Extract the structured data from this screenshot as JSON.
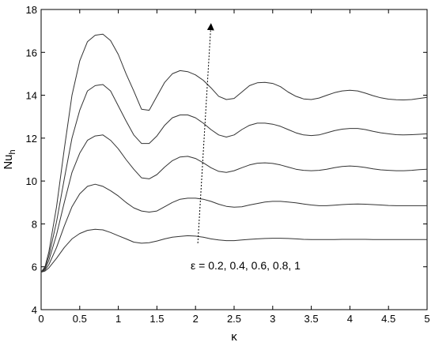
{
  "chart_data": {
    "type": "line",
    "xlabel": "κ",
    "ylabel_main": "Nu",
    "ylabel_sub": "h",
    "xlim": [
      0,
      5
    ],
    "ylim": [
      4,
      18
    ],
    "xticks": [
      0,
      0.5,
      1,
      1.5,
      2,
      2.5,
      3,
      3.5,
      4,
      4.5,
      5
    ],
    "xtick_labels": [
      "0",
      "0.5",
      "1",
      "1.5",
      "2",
      "2.5",
      "3",
      "3.5",
      "4",
      "4.5",
      "5"
    ],
    "yticks": [
      4,
      6,
      8,
      10,
      12,
      14,
      16,
      18
    ],
    "ytick_labels": [
      "4",
      "6",
      "8",
      "10",
      "12",
      "14",
      "16",
      "18"
    ],
    "grid": false,
    "annotation": "ε = 0.2, 0.4, 0.6, 0.8, 1",
    "annotation_arrow": {
      "from": [
        2.03,
        7.1
      ],
      "to": [
        2.2,
        17.3
      ]
    },
    "line_color": "#333333",
    "series": [
      {
        "x": [
          0,
          0.05,
          0.1,
          0.2,
          0.3,
          0.4,
          0.5,
          0.6,
          0.7,
          0.8,
          0.9,
          1.0,
          1.1,
          1.2,
          1.3,
          1.4,
          1.5,
          1.6,
          1.7,
          1.8,
          1.9,
          2.0,
          2.1,
          2.2,
          2.3,
          2.4,
          2.5,
          2.6,
          2.7,
          2.8,
          2.9,
          3.0,
          3.1,
          3.2,
          3.3,
          3.4,
          3.5,
          3.6,
          3.7,
          3.8,
          3.9,
          4.0,
          4.1,
          4.2,
          4.3,
          4.4,
          4.5,
          4.6,
          4.7,
          4.8,
          4.9,
          5.0
        ],
        "values": [
          5.75,
          5.8,
          5.95,
          6.4,
          6.9,
          7.3,
          7.55,
          7.7,
          7.75,
          7.72,
          7.6,
          7.45,
          7.3,
          7.15,
          7.1,
          7.12,
          7.2,
          7.3,
          7.38,
          7.42,
          7.45,
          7.43,
          7.38,
          7.3,
          7.25,
          7.22,
          7.22,
          7.25,
          7.28,
          7.3,
          7.32,
          7.33,
          7.33,
          7.32,
          7.3,
          7.28,
          7.27,
          7.27,
          7.27,
          7.27,
          7.28,
          7.28,
          7.28,
          7.28,
          7.27,
          7.27,
          7.27,
          7.27,
          7.27,
          7.27,
          7.27,
          7.27
        ]
      },
      {
        "x": [
          0,
          0.05,
          0.1,
          0.2,
          0.3,
          0.4,
          0.5,
          0.6,
          0.7,
          0.8,
          0.9,
          1.0,
          1.1,
          1.2,
          1.3,
          1.4,
          1.5,
          1.6,
          1.7,
          1.8,
          1.9,
          2.0,
          2.1,
          2.2,
          2.3,
          2.4,
          2.5,
          2.6,
          2.7,
          2.8,
          2.9,
          3.0,
          3.1,
          3.2,
          3.3,
          3.4,
          3.5,
          3.6,
          3.7,
          3.8,
          3.9,
          4.0,
          4.1,
          4.2,
          4.3,
          4.4,
          4.5,
          4.6,
          4.7,
          4.8,
          4.9,
          5.0
        ],
        "values": [
          5.75,
          5.85,
          6.1,
          6.9,
          7.9,
          8.8,
          9.4,
          9.75,
          9.85,
          9.75,
          9.55,
          9.3,
          9.0,
          8.75,
          8.6,
          8.55,
          8.6,
          8.8,
          9.0,
          9.15,
          9.2,
          9.2,
          9.15,
          9.05,
          8.92,
          8.82,
          8.78,
          8.8,
          8.88,
          8.95,
          9.02,
          9.05,
          9.05,
          9.02,
          8.98,
          8.93,
          8.88,
          8.85,
          8.85,
          8.87,
          8.9,
          8.92,
          8.93,
          8.92,
          8.9,
          8.88,
          8.86,
          8.85,
          8.85,
          8.85,
          8.85,
          8.85
        ]
      },
      {
        "x": [
          0,
          0.05,
          0.1,
          0.2,
          0.3,
          0.4,
          0.5,
          0.6,
          0.7,
          0.8,
          0.9,
          1.0,
          1.1,
          1.2,
          1.3,
          1.4,
          1.5,
          1.6,
          1.7,
          1.8,
          1.9,
          2.0,
          2.1,
          2.2,
          2.3,
          2.4,
          2.5,
          2.6,
          2.7,
          2.8,
          2.9,
          3.0,
          3.1,
          3.2,
          3.3,
          3.4,
          3.5,
          3.6,
          3.7,
          3.8,
          3.9,
          4.0,
          4.1,
          4.2,
          4.3,
          4.4,
          4.5,
          4.6,
          4.7,
          4.8,
          4.9,
          5.0
        ],
        "values": [
          5.75,
          5.9,
          6.3,
          7.5,
          9.0,
          10.4,
          11.3,
          11.9,
          12.1,
          12.15,
          11.9,
          11.5,
          11.0,
          10.55,
          10.15,
          10.1,
          10.3,
          10.65,
          10.95,
          11.12,
          11.15,
          11.05,
          10.85,
          10.62,
          10.45,
          10.4,
          10.48,
          10.62,
          10.75,
          10.83,
          10.85,
          10.82,
          10.75,
          10.65,
          10.55,
          10.5,
          10.48,
          10.5,
          10.55,
          10.62,
          10.68,
          10.7,
          10.68,
          10.63,
          10.57,
          10.52,
          10.5,
          10.48,
          10.48,
          10.5,
          10.53,
          10.55
        ]
      },
      {
        "x": [
          0,
          0.05,
          0.1,
          0.2,
          0.3,
          0.4,
          0.5,
          0.6,
          0.7,
          0.8,
          0.9,
          1.0,
          1.1,
          1.2,
          1.3,
          1.4,
          1.5,
          1.6,
          1.7,
          1.8,
          1.9,
          2.0,
          2.1,
          2.2,
          2.3,
          2.4,
          2.5,
          2.6,
          2.7,
          2.8,
          2.9,
          3.0,
          3.1,
          3.2,
          3.3,
          3.4,
          3.5,
          3.6,
          3.7,
          3.8,
          3.9,
          4.0,
          4.1,
          4.2,
          4.3,
          4.4,
          4.5,
          4.6,
          4.7,
          4.8,
          4.9,
          5.0
        ],
        "values": [
          5.75,
          5.95,
          6.5,
          8.1,
          10.1,
          12.0,
          13.3,
          14.2,
          14.45,
          14.5,
          14.2,
          13.5,
          12.8,
          12.15,
          11.75,
          11.75,
          12.1,
          12.6,
          12.95,
          13.08,
          13.08,
          12.95,
          12.7,
          12.4,
          12.15,
          12.05,
          12.15,
          12.4,
          12.6,
          12.7,
          12.7,
          12.65,
          12.55,
          12.4,
          12.25,
          12.15,
          12.12,
          12.15,
          12.25,
          12.35,
          12.42,
          12.45,
          12.45,
          12.4,
          12.32,
          12.25,
          12.2,
          12.16,
          12.15,
          12.16,
          12.18,
          12.2
        ]
      },
      {
        "x": [
          0,
          0.05,
          0.1,
          0.2,
          0.3,
          0.4,
          0.5,
          0.6,
          0.7,
          0.8,
          0.9,
          1.0,
          1.1,
          1.2,
          1.3,
          1.4,
          1.5,
          1.6,
          1.7,
          1.8,
          1.9,
          2.0,
          2.1,
          2.2,
          2.3,
          2.4,
          2.5,
          2.6,
          2.7,
          2.8,
          2.9,
          3.0,
          3.1,
          3.2,
          3.3,
          3.4,
          3.5,
          3.6,
          3.7,
          3.8,
          3.9,
          4.0,
          4.1,
          4.2,
          4.3,
          4.4,
          4.5,
          4.6,
          4.7,
          4.8,
          4.9,
          5.0
        ],
        "values": [
          5.75,
          6.0,
          6.7,
          8.8,
          11.5,
          14.0,
          15.6,
          16.5,
          16.8,
          16.85,
          16.55,
          15.9,
          15.0,
          14.2,
          13.35,
          13.3,
          13.95,
          14.6,
          15.0,
          15.15,
          15.1,
          14.95,
          14.7,
          14.35,
          13.95,
          13.8,
          13.85,
          14.15,
          14.45,
          14.58,
          14.6,
          14.55,
          14.4,
          14.15,
          13.95,
          13.83,
          13.8,
          13.87,
          14.0,
          14.12,
          14.2,
          14.23,
          14.2,
          14.1,
          13.98,
          13.88,
          13.82,
          13.79,
          13.78,
          13.8,
          13.85,
          13.9
        ]
      }
    ]
  }
}
